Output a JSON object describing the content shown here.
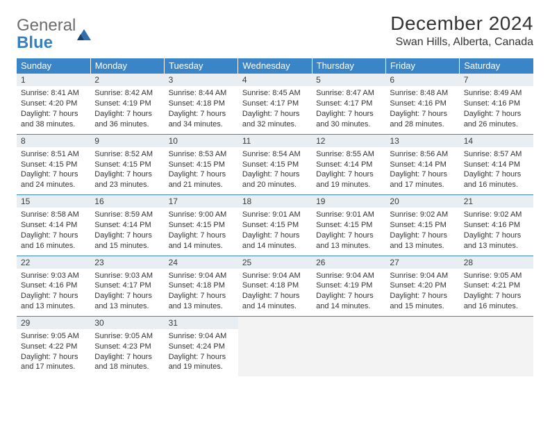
{
  "logo": {
    "top": "General",
    "bottom": "Blue"
  },
  "header": {
    "title": "December 2024",
    "location": "Swan Hills, Alberta, Canada"
  },
  "columns": [
    "Sunday",
    "Monday",
    "Tuesday",
    "Wednesday",
    "Thursday",
    "Friday",
    "Saturday"
  ],
  "colors": {
    "header_bg": "#3a85c7",
    "header_text": "#ffffff",
    "daynum_bg": "#e9eef2",
    "border": "#3a85c7",
    "empty_bg": "#f3f3f3"
  },
  "weeks": [
    [
      {
        "n": "1",
        "sunrise": "Sunrise: 8:41 AM",
        "sunset": "Sunset: 4:20 PM",
        "daylight": "Daylight: 7 hours and 38 minutes."
      },
      {
        "n": "2",
        "sunrise": "Sunrise: 8:42 AM",
        "sunset": "Sunset: 4:19 PM",
        "daylight": "Daylight: 7 hours and 36 minutes."
      },
      {
        "n": "3",
        "sunrise": "Sunrise: 8:44 AM",
        "sunset": "Sunset: 4:18 PM",
        "daylight": "Daylight: 7 hours and 34 minutes."
      },
      {
        "n": "4",
        "sunrise": "Sunrise: 8:45 AM",
        "sunset": "Sunset: 4:17 PM",
        "daylight": "Daylight: 7 hours and 32 minutes."
      },
      {
        "n": "5",
        "sunrise": "Sunrise: 8:47 AM",
        "sunset": "Sunset: 4:17 PM",
        "daylight": "Daylight: 7 hours and 30 minutes."
      },
      {
        "n": "6",
        "sunrise": "Sunrise: 8:48 AM",
        "sunset": "Sunset: 4:16 PM",
        "daylight": "Daylight: 7 hours and 28 minutes."
      },
      {
        "n": "7",
        "sunrise": "Sunrise: 8:49 AM",
        "sunset": "Sunset: 4:16 PM",
        "daylight": "Daylight: 7 hours and 26 minutes."
      }
    ],
    [
      {
        "n": "8",
        "sunrise": "Sunrise: 8:51 AM",
        "sunset": "Sunset: 4:15 PM",
        "daylight": "Daylight: 7 hours and 24 minutes."
      },
      {
        "n": "9",
        "sunrise": "Sunrise: 8:52 AM",
        "sunset": "Sunset: 4:15 PM",
        "daylight": "Daylight: 7 hours and 23 minutes."
      },
      {
        "n": "10",
        "sunrise": "Sunrise: 8:53 AM",
        "sunset": "Sunset: 4:15 PM",
        "daylight": "Daylight: 7 hours and 21 minutes."
      },
      {
        "n": "11",
        "sunrise": "Sunrise: 8:54 AM",
        "sunset": "Sunset: 4:15 PM",
        "daylight": "Daylight: 7 hours and 20 minutes."
      },
      {
        "n": "12",
        "sunrise": "Sunrise: 8:55 AM",
        "sunset": "Sunset: 4:14 PM",
        "daylight": "Daylight: 7 hours and 19 minutes."
      },
      {
        "n": "13",
        "sunrise": "Sunrise: 8:56 AM",
        "sunset": "Sunset: 4:14 PM",
        "daylight": "Daylight: 7 hours and 17 minutes."
      },
      {
        "n": "14",
        "sunrise": "Sunrise: 8:57 AM",
        "sunset": "Sunset: 4:14 PM",
        "daylight": "Daylight: 7 hours and 16 minutes."
      }
    ],
    [
      {
        "n": "15",
        "sunrise": "Sunrise: 8:58 AM",
        "sunset": "Sunset: 4:14 PM",
        "daylight": "Daylight: 7 hours and 16 minutes."
      },
      {
        "n": "16",
        "sunrise": "Sunrise: 8:59 AM",
        "sunset": "Sunset: 4:14 PM",
        "daylight": "Daylight: 7 hours and 15 minutes."
      },
      {
        "n": "17",
        "sunrise": "Sunrise: 9:00 AM",
        "sunset": "Sunset: 4:15 PM",
        "daylight": "Daylight: 7 hours and 14 minutes."
      },
      {
        "n": "18",
        "sunrise": "Sunrise: 9:01 AM",
        "sunset": "Sunset: 4:15 PM",
        "daylight": "Daylight: 7 hours and 14 minutes."
      },
      {
        "n": "19",
        "sunrise": "Sunrise: 9:01 AM",
        "sunset": "Sunset: 4:15 PM",
        "daylight": "Daylight: 7 hours and 13 minutes."
      },
      {
        "n": "20",
        "sunrise": "Sunrise: 9:02 AM",
        "sunset": "Sunset: 4:15 PM",
        "daylight": "Daylight: 7 hours and 13 minutes."
      },
      {
        "n": "21",
        "sunrise": "Sunrise: 9:02 AM",
        "sunset": "Sunset: 4:16 PM",
        "daylight": "Daylight: 7 hours and 13 minutes."
      }
    ],
    [
      {
        "n": "22",
        "sunrise": "Sunrise: 9:03 AM",
        "sunset": "Sunset: 4:16 PM",
        "daylight": "Daylight: 7 hours and 13 minutes."
      },
      {
        "n": "23",
        "sunrise": "Sunrise: 9:03 AM",
        "sunset": "Sunset: 4:17 PM",
        "daylight": "Daylight: 7 hours and 13 minutes."
      },
      {
        "n": "24",
        "sunrise": "Sunrise: 9:04 AM",
        "sunset": "Sunset: 4:18 PM",
        "daylight": "Daylight: 7 hours and 13 minutes."
      },
      {
        "n": "25",
        "sunrise": "Sunrise: 9:04 AM",
        "sunset": "Sunset: 4:18 PM",
        "daylight": "Daylight: 7 hours and 14 minutes."
      },
      {
        "n": "26",
        "sunrise": "Sunrise: 9:04 AM",
        "sunset": "Sunset: 4:19 PM",
        "daylight": "Daylight: 7 hours and 14 minutes."
      },
      {
        "n": "27",
        "sunrise": "Sunrise: 9:04 AM",
        "sunset": "Sunset: 4:20 PM",
        "daylight": "Daylight: 7 hours and 15 minutes."
      },
      {
        "n": "28",
        "sunrise": "Sunrise: 9:05 AM",
        "sunset": "Sunset: 4:21 PM",
        "daylight": "Daylight: 7 hours and 16 minutes."
      }
    ],
    [
      {
        "n": "29",
        "sunrise": "Sunrise: 9:05 AM",
        "sunset": "Sunset: 4:22 PM",
        "daylight": "Daylight: 7 hours and 17 minutes."
      },
      {
        "n": "30",
        "sunrise": "Sunrise: 9:05 AM",
        "sunset": "Sunset: 4:23 PM",
        "daylight": "Daylight: 7 hours and 18 minutes."
      },
      {
        "n": "31",
        "sunrise": "Sunrise: 9:04 AM",
        "sunset": "Sunset: 4:24 PM",
        "daylight": "Daylight: 7 hours and 19 minutes."
      },
      {
        "empty": true
      },
      {
        "empty": true
      },
      {
        "empty": true
      },
      {
        "empty": true
      }
    ]
  ]
}
